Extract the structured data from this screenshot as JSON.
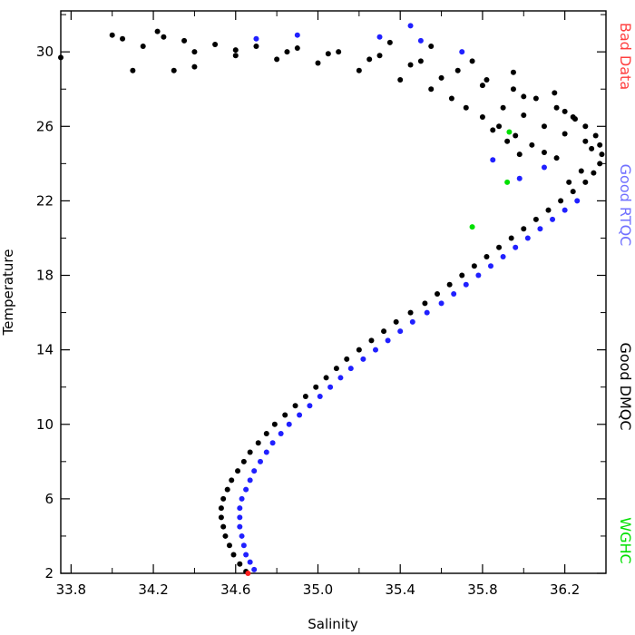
{
  "chart_data": {
    "type": "scatter",
    "title": "",
    "xlabel": "Salinity",
    "ylabel": "Temperature",
    "xlim": [
      33.75,
      36.4
    ],
    "ylim": [
      2,
      32.2
    ],
    "x_ticks": [
      "33.8",
      "34.2",
      "34.6",
      "35.0",
      "35.4",
      "35.8",
      "36.2"
    ],
    "x_tick_values": [
      33.8,
      34.2,
      34.6,
      35.0,
      35.4,
      35.8,
      36.2
    ],
    "y_ticks": [
      "2",
      "6",
      "10",
      "14",
      "18",
      "22",
      "26",
      "30"
    ],
    "y_tick_values": [
      2,
      6,
      10,
      14,
      18,
      22,
      26,
      30
    ],
    "grid": false,
    "legend_position": "right (vertical text)",
    "legend": [
      {
        "label": "Bad Data",
        "color": "#ff4040"
      },
      {
        "label": "Good RTQC",
        "color": "#7070ff"
      },
      {
        "label": "Good DMQC",
        "color": "#000000"
      },
      {
        "label": "WGHC",
        "color": "#00e000"
      }
    ],
    "series": [
      {
        "name": "Good DMQC",
        "color": "#000000",
        "points": [
          [
            34.65,
            2.1
          ],
          [
            34.62,
            2.5
          ],
          [
            34.59,
            3.0
          ],
          [
            34.57,
            3.5
          ],
          [
            34.55,
            4.0
          ],
          [
            34.54,
            4.5
          ],
          [
            34.53,
            5.0
          ],
          [
            34.53,
            5.5
          ],
          [
            34.54,
            6.0
          ],
          [
            34.56,
            6.5
          ],
          [
            34.58,
            7.0
          ],
          [
            34.61,
            7.5
          ],
          [
            34.64,
            8.0
          ],
          [
            34.67,
            8.5
          ],
          [
            34.71,
            9.0
          ],
          [
            34.75,
            9.5
          ],
          [
            34.79,
            10.0
          ],
          [
            34.84,
            10.5
          ],
          [
            34.89,
            11.0
          ],
          [
            34.94,
            11.5
          ],
          [
            34.99,
            12.0
          ],
          [
            35.04,
            12.5
          ],
          [
            35.09,
            13.0
          ],
          [
            35.14,
            13.5
          ],
          [
            35.2,
            14.0
          ],
          [
            35.26,
            14.5
          ],
          [
            35.32,
            15.0
          ],
          [
            35.38,
            15.5
          ],
          [
            35.45,
            16.0
          ],
          [
            35.52,
            16.5
          ],
          [
            35.58,
            17.0
          ],
          [
            35.64,
            17.5
          ],
          [
            35.7,
            18.0
          ],
          [
            35.76,
            18.5
          ],
          [
            35.82,
            19.0
          ],
          [
            35.88,
            19.5
          ],
          [
            35.94,
            20.0
          ],
          [
            36.0,
            20.5
          ],
          [
            36.06,
            21.0
          ],
          [
            36.12,
            21.5
          ],
          [
            36.18,
            22.0
          ],
          [
            36.24,
            22.5
          ],
          [
            36.3,
            23.0
          ],
          [
            36.34,
            23.5
          ],
          [
            36.37,
            24.0
          ],
          [
            36.38,
            24.5
          ],
          [
            36.37,
            25.0
          ],
          [
            36.35,
            25.5
          ],
          [
            36.3,
            26.0
          ],
          [
            36.24,
            26.5
          ],
          [
            36.16,
            27.0
          ],
          [
            36.06,
            27.5
          ],
          [
            35.95,
            28.0
          ],
          [
            35.82,
            28.5
          ],
          [
            35.68,
            29.0
          ],
          [
            35.5,
            29.5
          ],
          [
            35.3,
            29.8
          ],
          [
            35.1,
            30.0
          ],
          [
            34.9,
            30.2
          ],
          [
            34.7,
            30.3
          ],
          [
            34.5,
            30.4
          ],
          [
            34.35,
            30.6
          ],
          [
            34.25,
            30.8
          ],
          [
            34.1,
            29.0
          ],
          [
            34.3,
            29.0
          ],
          [
            34.4,
            29.2
          ],
          [
            34.0,
            30.9
          ],
          [
            34.05,
            30.7
          ],
          [
            34.22,
            31.1
          ],
          [
            33.75,
            29.7
          ],
          [
            34.15,
            30.3
          ],
          [
            34.4,
            30.0
          ],
          [
            34.6,
            29.8
          ],
          [
            34.8,
            29.6
          ],
          [
            35.0,
            29.4
          ],
          [
            35.2,
            29.0
          ],
          [
            35.4,
            28.5
          ],
          [
            35.55,
            28.0
          ],
          [
            35.65,
            27.5
          ],
          [
            35.72,
            27.0
          ],
          [
            35.8,
            26.5
          ],
          [
            35.88,
            26.0
          ],
          [
            35.96,
            25.5
          ],
          [
            36.04,
            25.0
          ],
          [
            36.1,
            24.6
          ],
          [
            36.16,
            24.3
          ],
          [
            35.9,
            27.0
          ],
          [
            36.0,
            26.6
          ],
          [
            36.1,
            26.0
          ],
          [
            36.2,
            25.6
          ],
          [
            36.3,
            25.2
          ],
          [
            35.6,
            28.6
          ],
          [
            35.8,
            28.2
          ],
          [
            36.0,
            27.6
          ],
          [
            36.2,
            26.8
          ],
          [
            35.45,
            29.3
          ],
          [
            35.25,
            29.6
          ],
          [
            35.05,
            29.9
          ],
          [
            34.85,
            30.0
          ],
          [
            34.6,
            30.1
          ],
          [
            35.35,
            30.5
          ],
          [
            35.55,
            30.3
          ],
          [
            35.75,
            29.5
          ],
          [
            35.95,
            28.9
          ],
          [
            36.15,
            27.8
          ],
          [
            36.25,
            26.4
          ],
          [
            36.33,
            24.8
          ],
          [
            36.28,
            23.6
          ],
          [
            36.22,
            23.0
          ],
          [
            35.98,
            24.5
          ],
          [
            35.92,
            25.2
          ],
          [
            35.85,
            25.8
          ]
        ]
      },
      {
        "name": "Good RTQC",
        "color": "#2020ff",
        "points": [
          [
            34.69,
            2.2
          ],
          [
            34.67,
            2.6
          ],
          [
            34.65,
            3.0
          ],
          [
            34.64,
            3.5
          ],
          [
            34.63,
            4.0
          ],
          [
            34.62,
            4.5
          ],
          [
            34.62,
            5.0
          ],
          [
            34.62,
            5.5
          ],
          [
            34.63,
            6.0
          ],
          [
            34.65,
            6.5
          ],
          [
            34.67,
            7.0
          ],
          [
            34.69,
            7.5
          ],
          [
            34.72,
            8.0
          ],
          [
            34.75,
            8.5
          ],
          [
            34.78,
            9.0
          ],
          [
            34.82,
            9.5
          ],
          [
            34.86,
            10.0
          ],
          [
            34.91,
            10.5
          ],
          [
            34.96,
            11.0
          ],
          [
            35.01,
            11.5
          ],
          [
            35.06,
            12.0
          ],
          [
            35.11,
            12.5
          ],
          [
            35.16,
            13.0
          ],
          [
            35.22,
            13.5
          ],
          [
            35.28,
            14.0
          ],
          [
            35.34,
            14.5
          ],
          [
            35.4,
            15.0
          ],
          [
            35.46,
            15.5
          ],
          [
            35.53,
            16.0
          ],
          [
            35.6,
            16.5
          ],
          [
            35.66,
            17.0
          ],
          [
            35.72,
            17.5
          ],
          [
            35.78,
            18.0
          ],
          [
            35.84,
            18.5
          ],
          [
            35.9,
            19.0
          ],
          [
            35.96,
            19.5
          ],
          [
            36.02,
            20.0
          ],
          [
            36.08,
            20.5
          ],
          [
            36.14,
            21.0
          ],
          [
            36.2,
            21.5
          ],
          [
            36.26,
            22.0
          ],
          [
            35.45,
            31.4
          ],
          [
            35.3,
            30.8
          ],
          [
            35.5,
            30.6
          ],
          [
            34.9,
            30.9
          ],
          [
            34.7,
            30.7
          ],
          [
            35.85,
            24.2
          ],
          [
            35.98,
            23.2
          ],
          [
            36.1,
            23.8
          ],
          [
            35.7,
            30.0
          ]
        ]
      },
      {
        "name": "WGHC",
        "color": "#00e000",
        "points": [
          [
            35.75,
            20.6
          ],
          [
            35.92,
            23.0
          ],
          [
            35.93,
            25.7
          ]
        ]
      },
      {
        "name": "Bad Data",
        "color": "#ff2020",
        "points": [
          [
            34.66,
            2.0
          ]
        ]
      }
    ]
  }
}
